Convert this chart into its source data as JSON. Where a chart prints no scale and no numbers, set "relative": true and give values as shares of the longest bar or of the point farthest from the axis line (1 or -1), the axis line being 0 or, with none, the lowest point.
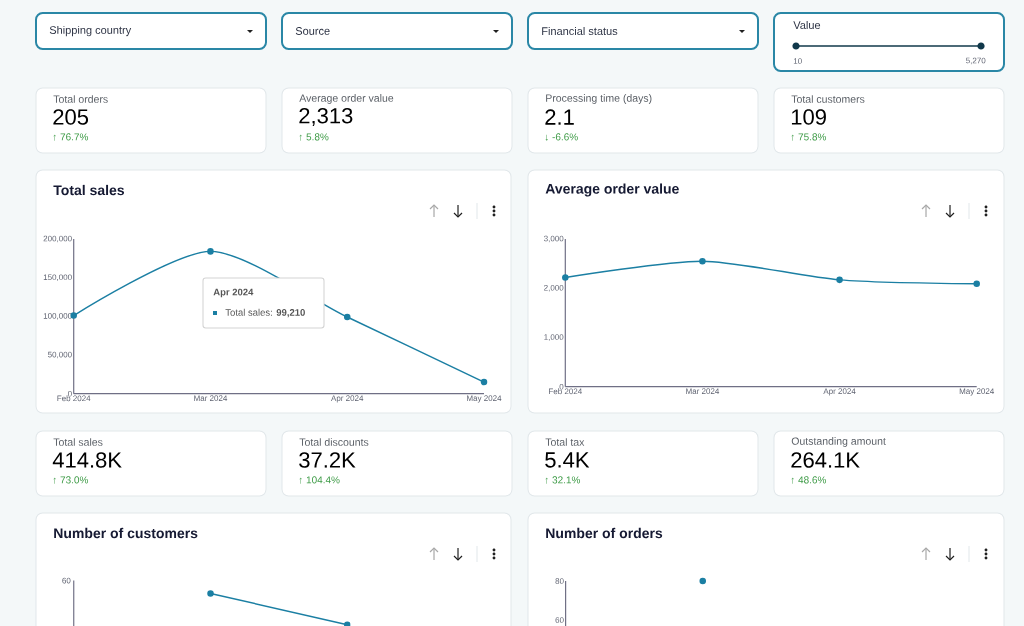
{
  "chart_data": [
    {
      "type": "other",
      "title": "Shipping country"
    },
    {
      "type": "other",
      "title": "Source"
    },
    {
      "type": "other",
      "title": "Financial status"
    },
    {
      "type": "other",
      "title": "Value",
      "annotations": [
        "10",
        "5,270"
      ]
    },
    {
      "type": "other",
      "title": "Total orders",
      "annotations": [
        "205",
        "↑ 76.7%"
      ]
    },
    {
      "type": "other",
      "title": "Average order value",
      "annotations": [
        "2,313",
        "↑ 5.8%"
      ]
    },
    {
      "type": "other",
      "title": "Processing time (days)",
      "annotations": [
        "2.1",
        "↓ -6.6%"
      ]
    },
    {
      "type": "other",
      "title": "Total customers",
      "annotations": [
        "109",
        "↑ 75.8%"
      ]
    },
    {
      "type": "line",
      "title": "Total sales",
      "categories": [
        "Feb 2024",
        "Mar 2024",
        "Apr 2024",
        "May 2024"
      ],
      "values": [
        101000,
        184000,
        99210,
        15000
      ],
      "color": "#1b7fa3",
      "marker": "circle",
      "ylim": [
        0,
        200000
      ],
      "yticks": [
        0,
        {
          "value": 50000,
          "label": "50,000"
        },
        {
          "value": 100000,
          "label": "100,000"
        },
        {
          "value": 150000,
          "label": "150,000"
        },
        {
          "value": 200000,
          "label": "200,000"
        }
      ],
      "annotations": [
        "Apr 2024",
        "Total sales: **99,210**"
      ]
    },
    {
      "type": "line",
      "title": "Average order value",
      "categories": [
        "Feb 2024",
        "Mar 2024",
        "Apr 2024",
        "May 2024"
      ],
      "values": [
        2220,
        2550,
        2170,
        2090
      ],
      "color": "#1b7fa3",
      "marker": "circle",
      "ylim": [
        0,
        3000
      ],
      "yticks": [
        0,
        {
          "value": 1000,
          "label": "1,000"
        },
        {
          "value": 2000,
          "label": "2,000"
        },
        {
          "value": 3000,
          "label": "3,000"
        }
      ]
    },
    {
      "type": "other",
      "title": "Total sales",
      "annotations": [
        "414.8K",
        "↑ 73.0%"
      ]
    },
    {
      "type": "other",
      "title": "Total discounts",
      "annotations": [
        "37.2K",
        "↑ 104.4%"
      ]
    },
    {
      "type": "other",
      "title": "Total tax",
      "annotations": [
        "5.4K",
        "↑ 32.1%"
      ]
    },
    {
      "type": "other",
      "title": "Outstanding amount",
      "annotations": [
        "264.1K",
        "↑ 48.6%"
      ]
    },
    {
      "type": "line",
      "title": "Number of customers",
      "categories": [
        null,
        null,
        null,
        null
      ],
      "values": [
        null,
        1,
        0.78,
        null
      ],
      "relative": true,
      "color": "#1b7fa3",
      "marker": "circle",
      "annotations": [
        "60"
      ]
    },
    {
      "type": "line",
      "title": "Number of orders",
      "categories": [
        null,
        null,
        null,
        null
      ],
      "values": [
        null,
        80,
        null,
        null
      ],
      "color": "#1b7fa3",
      "marker": "circle",
      "ylim": [
        0,
        80
      ],
      "yticks": [
        60,
        80
      ],
      "tick_labels": "y"
    }
  ]
}
